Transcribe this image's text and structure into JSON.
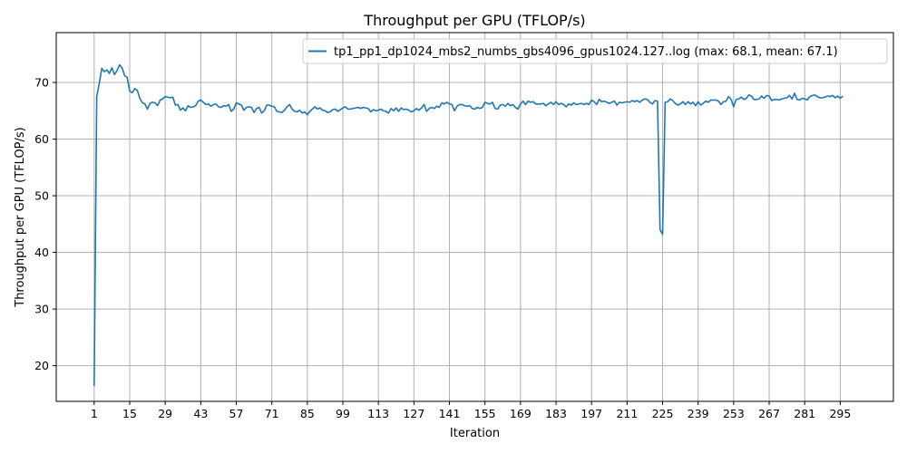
{
  "chart_data": {
    "type": "line",
    "title": "Throughput per GPU (TFLOP/s)",
    "xlabel": "Iteration",
    "ylabel": "Throughput per GPU (TFLOP/s)",
    "xlim": [
      -13.95,
      315.95
    ],
    "ylim": [
      13.7,
      78.8
    ],
    "grid": true,
    "legend_position": "top-right",
    "xticks": [
      1,
      15,
      29,
      43,
      57,
      71,
      85,
      99,
      113,
      127,
      141,
      155,
      169,
      183,
      197,
      211,
      225,
      239,
      253,
      267,
      281,
      295
    ],
    "yticks": [
      20,
      30,
      40,
      50,
      60,
      70
    ],
    "series": [
      {
        "name": "tp1_pp1_dp1024_mbs2_numbs_gbs4096_gpus1024.127..log (max: 68.1, mean: 67.1)",
        "color": "#1f77b4",
        "points": [
          [
            1,
            16.4
          ],
          [
            2,
            67.5
          ],
          [
            3,
            69.8
          ],
          [
            4,
            72.5
          ],
          [
            5,
            71.9
          ],
          [
            6,
            72.2
          ],
          [
            7,
            71.6
          ],
          [
            8,
            72.6
          ],
          [
            9,
            71.4
          ],
          [
            10,
            72.1
          ],
          [
            11,
            73.1
          ],
          [
            12,
            72.6
          ],
          [
            13,
            71.2
          ],
          [
            14,
            70.9
          ],
          [
            15,
            68.5
          ],
          [
            16,
            68.2
          ],
          [
            17,
            68.9
          ],
          [
            18,
            68.6
          ],
          [
            19,
            67.2
          ],
          [
            20,
            66.4
          ],
          [
            21,
            66.2
          ],
          [
            22,
            65.3
          ],
          [
            23,
            66.3
          ],
          [
            24,
            66.5
          ],
          [
            25,
            66.4
          ],
          [
            26,
            65.9
          ],
          [
            27,
            66.9
          ],
          [
            28,
            67.1
          ],
          [
            29,
            67.5
          ],
          [
            30,
            67.4
          ],
          [
            31,
            67.3
          ],
          [
            32,
            67.4
          ],
          [
            33,
            66.0
          ],
          [
            34,
            66.1
          ],
          [
            35,
            65.1
          ],
          [
            36,
            65.5
          ],
          [
            37,
            65.0
          ],
          [
            38,
            65.9
          ],
          [
            39,
            65.6
          ],
          [
            40,
            65.7
          ],
          [
            41,
            65.9
          ],
          [
            42,
            66.7
          ],
          [
            43,
            66.9
          ],
          [
            44,
            66.5
          ],
          [
            45,
            66.1
          ],
          [
            46,
            66.2
          ],
          [
            47,
            65.8
          ],
          [
            48,
            66.1
          ],
          [
            49,
            66.2
          ],
          [
            50,
            65.7
          ],
          [
            51,
            65.6
          ],
          [
            52,
            65.9
          ],
          [
            53,
            65.8
          ],
          [
            54,
            66.1
          ],
          [
            55,
            64.9
          ],
          [
            56,
            65.3
          ],
          [
            57,
            66.4
          ],
          [
            58,
            66.2
          ],
          [
            59,
            66.0
          ],
          [
            60,
            65.1
          ],
          [
            61,
            65.6
          ],
          [
            62,
            65.7
          ],
          [
            63,
            65.6
          ],
          [
            64,
            64.7
          ],
          [
            65,
            65.4
          ],
          [
            66,
            65.6
          ],
          [
            67,
            64.6
          ],
          [
            68,
            65.0
          ],
          [
            69,
            66.0
          ],
          [
            70,
            66.0
          ],
          [
            71,
            65.8
          ],
          [
            72,
            65.7
          ],
          [
            73,
            64.9
          ],
          [
            74,
            64.8
          ],
          [
            75,
            64.7
          ],
          [
            76,
            65.1
          ],
          [
            77,
            65.7
          ],
          [
            78,
            66.1
          ],
          [
            79,
            65.3
          ],
          [
            80,
            64.9
          ],
          [
            81,
            64.8
          ],
          [
            82,
            65.1
          ],
          [
            83,
            64.6
          ],
          [
            84,
            64.8
          ],
          [
            85,
            64.3
          ],
          [
            86,
            64.9
          ],
          [
            87,
            65.3
          ],
          [
            88,
            65.7
          ],
          [
            89,
            65.3
          ],
          [
            90,
            65.5
          ],
          [
            91,
            65.1
          ],
          [
            92,
            65.0
          ],
          [
            93,
            64.7
          ],
          [
            94,
            64.8
          ],
          [
            95,
            65.2
          ],
          [
            96,
            65.3
          ],
          [
            97,
            64.9
          ],
          [
            98,
            65.2
          ],
          [
            99,
            65.5
          ],
          [
            100,
            65.7
          ],
          [
            101,
            65.3
          ],
          [
            102,
            65.3
          ],
          [
            103,
            65.4
          ],
          [
            104,
            65.5
          ],
          [
            105,
            65.6
          ],
          [
            106,
            65.4
          ],
          [
            107,
            65.6
          ],
          [
            108,
            65.5
          ],
          [
            109,
            65.4
          ],
          [
            110,
            64.8
          ],
          [
            111,
            65.2
          ],
          [
            112,
            65.0
          ],
          [
            113,
            65.1
          ],
          [
            114,
            65.3
          ],
          [
            115,
            65.0
          ],
          [
            116,
            64.9
          ],
          [
            117,
            64.6
          ],
          [
            118,
            65.4
          ],
          [
            119,
            65.0
          ],
          [
            120,
            65.5
          ],
          [
            121,
            64.9
          ],
          [
            122,
            65.5
          ],
          [
            123,
            65.2
          ],
          [
            124,
            65.3
          ],
          [
            125,
            65.1
          ],
          [
            126,
            64.8
          ],
          [
            127,
            65.0
          ],
          [
            128,
            65.4
          ],
          [
            129,
            65.1
          ],
          [
            130,
            65.5
          ],
          [
            131,
            66.1
          ],
          [
            132,
            64.9
          ],
          [
            133,
            65.4
          ],
          [
            134,
            65.6
          ],
          [
            135,
            65.4
          ],
          [
            136,
            65.8
          ],
          [
            137,
            65.6
          ],
          [
            138,
            66.4
          ],
          [
            139,
            66.2
          ],
          [
            140,
            66.5
          ],
          [
            141,
            66.2
          ],
          [
            142,
            66.1
          ],
          [
            143,
            65.0
          ],
          [
            144,
            65.8
          ],
          [
            145,
            66.1
          ],
          [
            146,
            66.1
          ],
          [
            147,
            65.9
          ],
          [
            148,
            65.8
          ],
          [
            149,
            65.9
          ],
          [
            150,
            65.4
          ],
          [
            151,
            65.3
          ],
          [
            152,
            65.6
          ],
          [
            153,
            65.4
          ],
          [
            154,
            65.6
          ],
          [
            155,
            66.5
          ],
          [
            156,
            66.3
          ],
          [
            157,
            66.2
          ],
          [
            158,
            66.5
          ],
          [
            159,
            65.4
          ],
          [
            160,
            65.3
          ],
          [
            161,
            66.0
          ],
          [
            162,
            66.1
          ],
          [
            163,
            65.8
          ],
          [
            164,
            66.3
          ],
          [
            165,
            65.9
          ],
          [
            166,
            66.1
          ],
          [
            167,
            65.6
          ],
          [
            168,
            65.3
          ],
          [
            169,
            66.2
          ],
          [
            170,
            66.7
          ],
          [
            171,
            66.1
          ],
          [
            172,
            66.7
          ],
          [
            173,
            66.5
          ],
          [
            174,
            66.6
          ],
          [
            175,
            66.2
          ],
          [
            176,
            66.2
          ],
          [
            177,
            66.2
          ],
          [
            178,
            66.3
          ],
          [
            179,
            65.9
          ],
          [
            180,
            66.2
          ],
          [
            181,
            66.5
          ],
          [
            182,
            66.1
          ],
          [
            183,
            66.6
          ],
          [
            184,
            66.1
          ],
          [
            185,
            66.3
          ],
          [
            186,
            66.1
          ],
          [
            187,
            65.7
          ],
          [
            188,
            66.2
          ],
          [
            189,
            66.0
          ],
          [
            190,
            66.4
          ],
          [
            191,
            66.1
          ],
          [
            192,
            66.2
          ],
          [
            193,
            66.3
          ],
          [
            194,
            66.1
          ],
          [
            195,
            66.3
          ],
          [
            196,
            66.1
          ],
          [
            197,
            66.9
          ],
          [
            198,
            66.6
          ],
          [
            199,
            66.1
          ],
          [
            200,
            67.0
          ],
          [
            201,
            66.6
          ],
          [
            202,
            66.7
          ],
          [
            203,
            66.5
          ],
          [
            204,
            66.3
          ],
          [
            205,
            66.5
          ],
          [
            206,
            66.7
          ],
          [
            207,
            66.0
          ],
          [
            208,
            66.5
          ],
          [
            209,
            66.4
          ],
          [
            210,
            66.5
          ],
          [
            211,
            66.6
          ],
          [
            212,
            66.5
          ],
          [
            213,
            66.8
          ],
          [
            214,
            66.6
          ],
          [
            215,
            66.8
          ],
          [
            216,
            66.5
          ],
          [
            217,
            66.9
          ],
          [
            218,
            67.1
          ],
          [
            219,
            67.0
          ],
          [
            220,
            66.5
          ],
          [
            221,
            66.2
          ],
          [
            222,
            66.8
          ],
          [
            223,
            66.7
          ],
          [
            224,
            44.0
          ],
          [
            225,
            43.2
          ],
          [
            226,
            66.5
          ],
          [
            227,
            66.6
          ],
          [
            228,
            67.1
          ],
          [
            229,
            66.8
          ],
          [
            230,
            66.3
          ],
          [
            231,
            66.0
          ],
          [
            232,
            66.2
          ],
          [
            233,
            66.6
          ],
          [
            234,
            66.1
          ],
          [
            235,
            66.6
          ],
          [
            236,
            66.2
          ],
          [
            237,
            66.5
          ],
          [
            238,
            65.9
          ],
          [
            239,
            66.6
          ],
          [
            240,
            66.0
          ],
          [
            241,
            66.3
          ],
          [
            242,
            66.7
          ],
          [
            243,
            66.5
          ],
          [
            244,
            66.9
          ],
          [
            245,
            66.9
          ],
          [
            246,
            66.9
          ],
          [
            247,
            66.7
          ],
          [
            248,
            66.1
          ],
          [
            249,
            66.6
          ],
          [
            250,
            66.7
          ],
          [
            251,
            67.5
          ],
          [
            252,
            67.0
          ],
          [
            253,
            65.7
          ],
          [
            254,
            67.0
          ],
          [
            255,
            67.1
          ],
          [
            256,
            67.4
          ],
          [
            257,
            67.0
          ],
          [
            258,
            67.2
          ],
          [
            259,
            67.8
          ],
          [
            260,
            67.6
          ],
          [
            261,
            67.0
          ],
          [
            262,
            67.0
          ],
          [
            263,
            67.1
          ],
          [
            264,
            67.6
          ],
          [
            265,
            67.2
          ],
          [
            266,
            67.7
          ],
          [
            267,
            67.6
          ],
          [
            268,
            66.8
          ],
          [
            269,
            67.0
          ],
          [
            270,
            67.0
          ],
          [
            271,
            66.9
          ],
          [
            272,
            67.1
          ],
          [
            273,
            67.2
          ],
          [
            274,
            67.3
          ],
          [
            275,
            67.7
          ],
          [
            276,
            67.1
          ],
          [
            277,
            68.1
          ],
          [
            278,
            67.0
          ],
          [
            279,
            66.9
          ],
          [
            280,
            67.2
          ],
          [
            281,
            67.1
          ],
          [
            282,
            66.9
          ],
          [
            283,
            67.5
          ],
          [
            284,
            67.7
          ],
          [
            285,
            67.8
          ],
          [
            286,
            67.5
          ],
          [
            287,
            67.3
          ],
          [
            288,
            67.3
          ],
          [
            289,
            67.4
          ],
          [
            290,
            67.6
          ],
          [
            291,
            67.5
          ],
          [
            292,
            67.7
          ],
          [
            293,
            67.3
          ],
          [
            294,
            67.6
          ],
          [
            295,
            67.2
          ],
          [
            296,
            67.6
          ]
        ]
      }
    ]
  }
}
